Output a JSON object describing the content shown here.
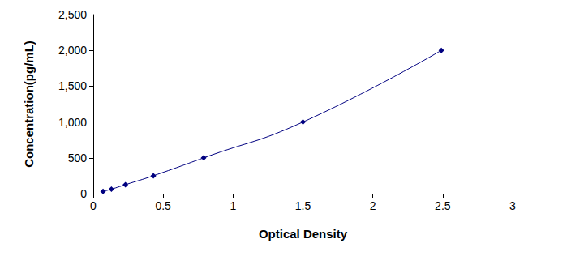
{
  "chart_data": {
    "type": "line",
    "x": [
      0.07,
      0.13,
      0.23,
      0.43,
      0.79,
      1.5,
      2.49
    ],
    "values": [
      31.25,
      62.5,
      125,
      250,
      500,
      1000,
      2000
    ],
    "xlabel": "Optical Density",
    "ylabel": "Concentration(pg/mL)",
    "xlim": [
      0,
      3
    ],
    "xticks": [
      0,
      0.5,
      1,
      1.5,
      2,
      2.5,
      3
    ],
    "ylim": [
      0,
      2500
    ],
    "yticks": [
      0,
      500,
      1000,
      1500,
      2000,
      2500
    ],
    "color": "#000080",
    "marker": "diamond",
    "line_style": "solid",
    "grid": false
  }
}
